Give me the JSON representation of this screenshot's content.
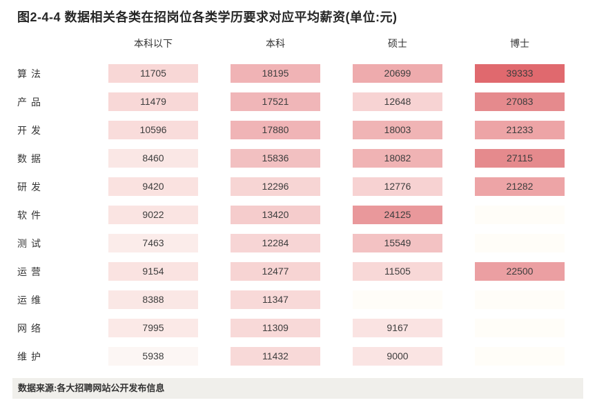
{
  "title": "图2-4-4 数据相关各类在招岗位各类学历要求对应平均薪资(单位:元)",
  "source_note": "数据来源:各大招聘网站公开发布信息",
  "colors": {
    "title_text": "#262626",
    "label_text": "#333333",
    "cell_text": "#3d3d3d",
    "footer_bg": "#f0efeb",
    "heat_low": "#fffdf8",
    "heat_high": "#e0696e"
  },
  "chart_data": {
    "type": "heatmap",
    "title": "图2-4-4 数据相关各类在招岗位各类学历要求对应平均薪资(单位:元)",
    "unit": "元",
    "columns": [
      "本科以下",
      "本科",
      "硕士",
      "博士"
    ],
    "rows": [
      {
        "label": "算法",
        "values": [
          11705,
          18195,
          20699,
          39333
        ],
        "colors": [
          "#f8d7d6",
          "#f0b3b5",
          "#eeabad",
          "#e0696e"
        ]
      },
      {
        "label": "产品",
        "values": [
          11479,
          17521,
          12648,
          27083
        ],
        "colors": [
          "#f8d8d7",
          "#f0b6b8",
          "#f7d3d3",
          "#e58a8d"
        ]
      },
      {
        "label": "开发",
        "values": [
          10596,
          17880,
          18003,
          21233
        ],
        "colors": [
          "#f9dcdb",
          "#f0b4b6",
          "#f0b4b5",
          "#eda4a6"
        ]
      },
      {
        "label": "数据",
        "values": [
          8460,
          15836,
          18082,
          27115
        ],
        "colors": [
          "#fae7e5",
          "#f2c0c1",
          "#f0b3b4",
          "#e58a8d"
        ]
      },
      {
        "label": "研发",
        "values": [
          9420,
          12296,
          12776,
          21282
        ],
        "colors": [
          "#fae2e0",
          "#f7d5d4",
          "#f7d2d2",
          "#eda4a6"
        ]
      },
      {
        "label": "软件",
        "values": [
          9022,
          13420,
          24125,
          null
        ],
        "colors": [
          "#fae4e2",
          "#f5cccc",
          "#e9989b",
          "#fffdf8"
        ]
      },
      {
        "label": "测试",
        "values": [
          7463,
          12284,
          15549,
          null
        ],
        "colors": [
          "#fbecea",
          "#f7d5d5",
          "#f3c2c3",
          "#fffdf8"
        ]
      },
      {
        "label": "运营",
        "values": [
          9154,
          12477,
          11505,
          22500
        ],
        "colors": [
          "#fae3e1",
          "#f7d4d3",
          "#f8d8d7",
          "#eb9fa2"
        ]
      },
      {
        "label": "运维",
        "values": [
          8388,
          11347,
          null,
          null
        ],
        "colors": [
          "#fae7e5",
          "#f8d9d8",
          "#fffdf8",
          "#fffdf8"
        ]
      },
      {
        "label": "网络",
        "values": [
          7995,
          11309,
          9167,
          null
        ],
        "colors": [
          "#fbe9e7",
          "#f8d9d8",
          "#fae3e2",
          "#fffdf8"
        ]
      },
      {
        "label": "维护",
        "values": [
          5938,
          11432,
          9000,
          null
        ],
        "colors": [
          "#fcf6f4",
          "#f8d9d8",
          "#fae4e3",
          "#fffdf8"
        ]
      }
    ],
    "value_range": [
      5938,
      39333
    ],
    "legend_position": "none",
    "grid": false
  }
}
